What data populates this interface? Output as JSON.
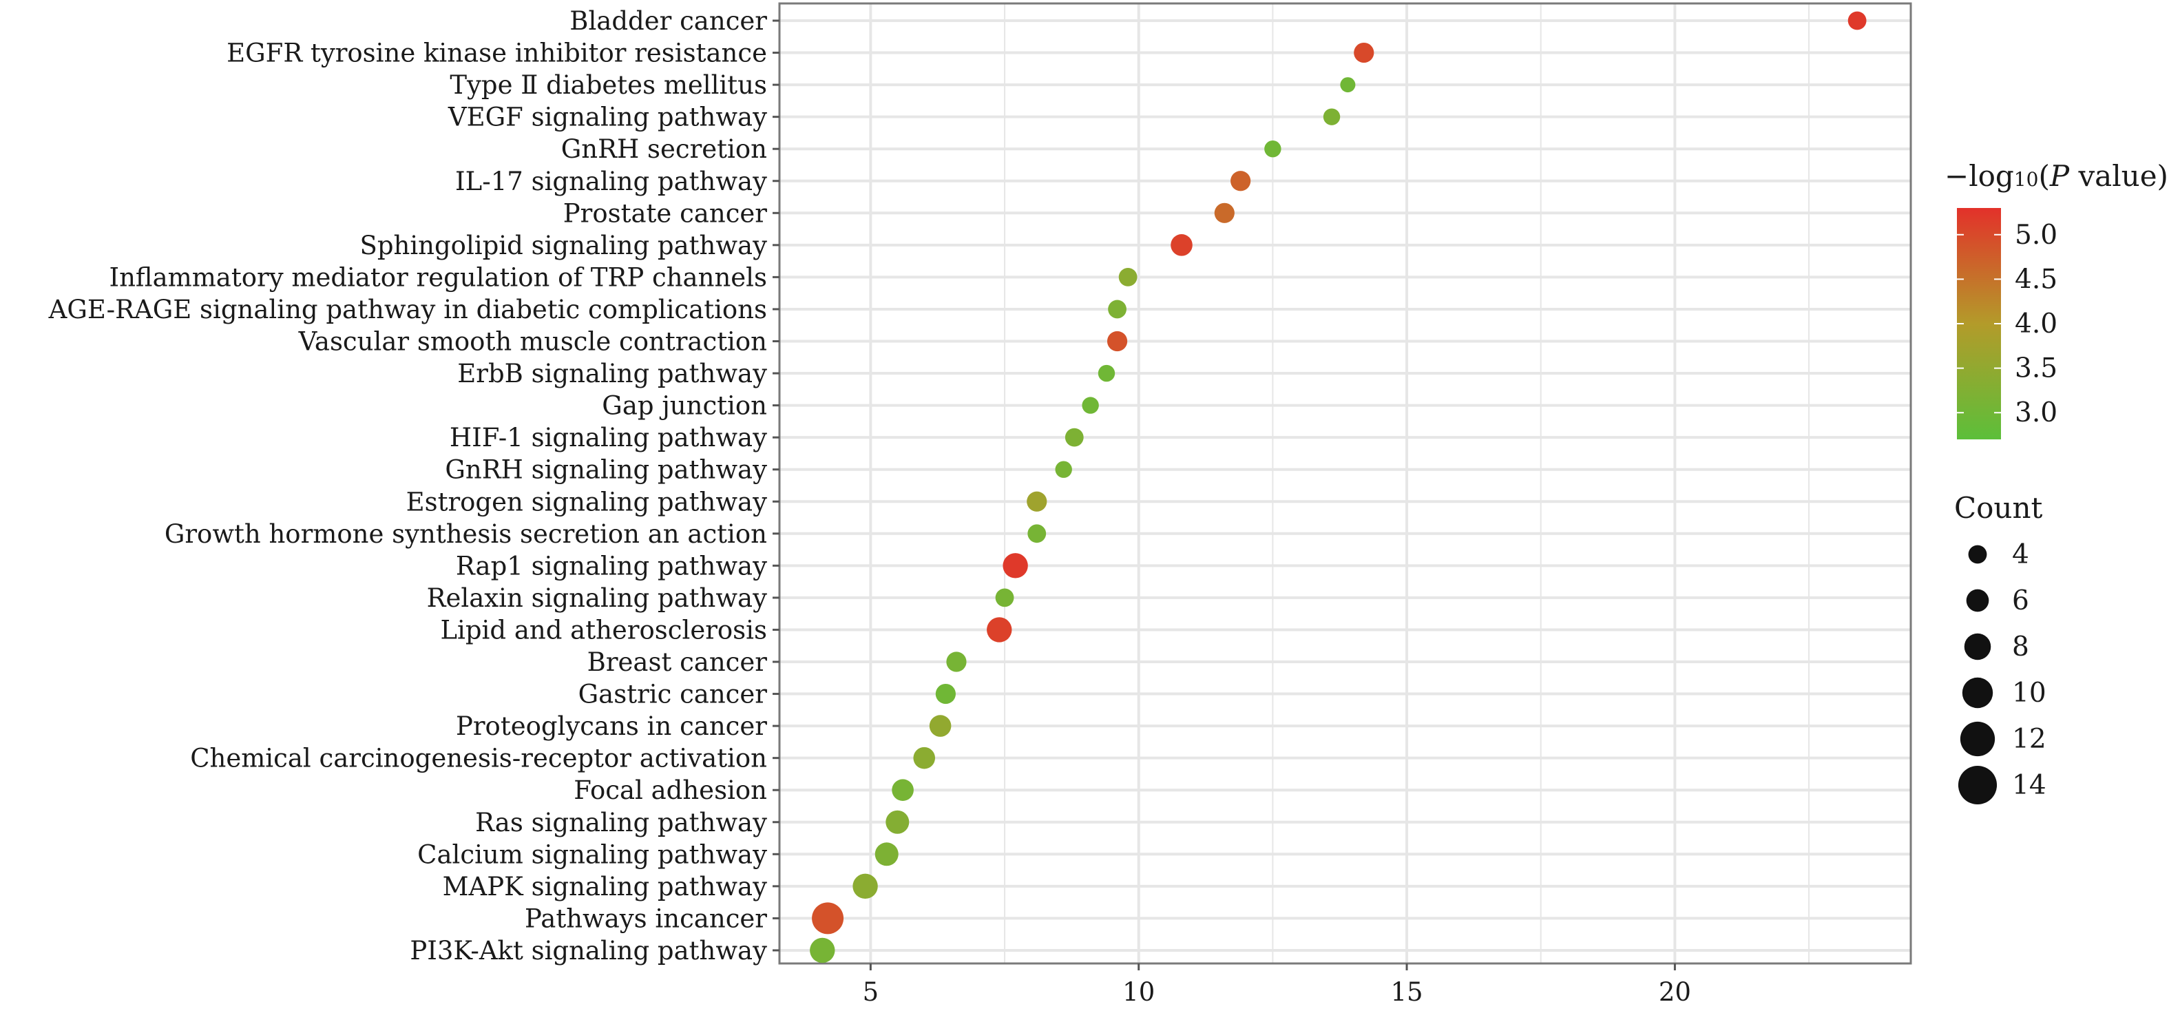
{
  "chart_data": {
    "type": "scatter",
    "title": "",
    "xlabel": "",
    "ylabel": "",
    "xlim": [
      3.3,
      24.4
    ],
    "x_ticks": [
      5,
      10,
      15,
      20
    ],
    "grid": true,
    "legend_placement": "right",
    "color_legend": {
      "title_prefix": "−log",
      "title_sub": "10",
      "title_open": "(",
      "title_var": "P",
      "title_rest": " value)",
      "range": [
        2.7,
        5.3
      ],
      "ticks": [
        "5.0",
        "4.5",
        "4.0",
        "3.5",
        "3.0"
      ],
      "tick_values": [
        5.0,
        4.5,
        4.0,
        3.5,
        3.0
      ],
      "low_color": "#5cbf3a",
      "mid_color": "#b39b2a",
      "high_color": "#e3312a"
    },
    "size_legend": {
      "title": "Count",
      "values": [
        4,
        6,
        8,
        10,
        12,
        14
      ],
      "labels": [
        "4",
        "6",
        "8",
        "10",
        "12",
        "14"
      ],
      "color": "#111111"
    },
    "points": [
      {
        "label": "Bladder cancer",
        "x": 23.4,
        "p": 5.2,
        "count": 6
      },
      {
        "label": "EGFR tyrosine kinase inhibitor resistance",
        "x": 14.2,
        "p": 5.0,
        "count": 7
      },
      {
        "label": "Type Ⅱ diabetes mellitus",
        "x": 13.9,
        "p": 3.0,
        "count": 4
      },
      {
        "label": "VEGF signaling pathway",
        "x": 13.6,
        "p": 3.2,
        "count": 5
      },
      {
        "label": "GnRH secretion",
        "x": 12.5,
        "p": 3.0,
        "count": 5
      },
      {
        "label": "IL-17 signaling pathway",
        "x": 11.9,
        "p": 4.7,
        "count": 7
      },
      {
        "label": "Prostate cancer",
        "x": 11.6,
        "p": 4.6,
        "count": 7
      },
      {
        "label": "Sphingolipid signaling pathway",
        "x": 10.8,
        "p": 5.1,
        "count": 8
      },
      {
        "label": "Inflammatory mediator regulation of TRP channels",
        "x": 9.8,
        "p": 3.4,
        "count": 6
      },
      {
        "label": "AGE-RAGE signaling pathway in diabetic complications",
        "x": 9.6,
        "p": 3.2,
        "count": 6
      },
      {
        "label": "Vascular smooth muscle contraction",
        "x": 9.6,
        "p": 4.9,
        "count": 7
      },
      {
        "label": "ErbB signaling pathway",
        "x": 9.4,
        "p": 3.0,
        "count": 5
      },
      {
        "label": "Gap junction",
        "x": 9.1,
        "p": 3.0,
        "count": 5
      },
      {
        "label": "HIF-1 signaling pathway",
        "x": 8.8,
        "p": 3.2,
        "count": 6
      },
      {
        "label": "GnRH signaling pathway",
        "x": 8.6,
        "p": 3.1,
        "count": 5
      },
      {
        "label": "Estrogen signaling pathway",
        "x": 8.1,
        "p": 3.7,
        "count": 7
      },
      {
        "label": "Growth hormone synthesis secretion an action",
        "x": 8.1,
        "p": 3.1,
        "count": 6
      },
      {
        "label": "Rap1 signaling pathway",
        "x": 7.7,
        "p": 5.2,
        "count": 10
      },
      {
        "label": "Relaxin signaling pathway",
        "x": 7.5,
        "p": 3.1,
        "count": 6
      },
      {
        "label": "Lipid and atherosclerosis",
        "x": 7.4,
        "p": 5.1,
        "count": 10
      },
      {
        "label": "Breast cancer",
        "x": 6.6,
        "p": 3.1,
        "count": 7
      },
      {
        "label": "Gastric cancer",
        "x": 6.4,
        "p": 3.0,
        "count": 7
      },
      {
        "label": "Proteoglycans in cancer",
        "x": 6.3,
        "p": 3.5,
        "count": 8
      },
      {
        "label": "Chemical carcinogenesis-receptor activation",
        "x": 6.0,
        "p": 3.4,
        "count": 8
      },
      {
        "label": "Focal adhesion",
        "x": 5.6,
        "p": 3.1,
        "count": 8
      },
      {
        "label": "Ras signaling pathway",
        "x": 5.5,
        "p": 3.3,
        "count": 9
      },
      {
        "label": "Calcium signaling pathway",
        "x": 5.3,
        "p": 3.2,
        "count": 9
      },
      {
        "label": "MAPK signaling pathway",
        "x": 4.9,
        "p": 3.4,
        "count": 10
      },
      {
        "label": "Pathways incancer",
        "x": 4.2,
        "p": 4.9,
        "count": 14
      },
      {
        "label": "PI3K-Akt signaling pathway",
        "x": 4.1,
        "p": 3.1,
        "count": 10
      }
    ]
  }
}
